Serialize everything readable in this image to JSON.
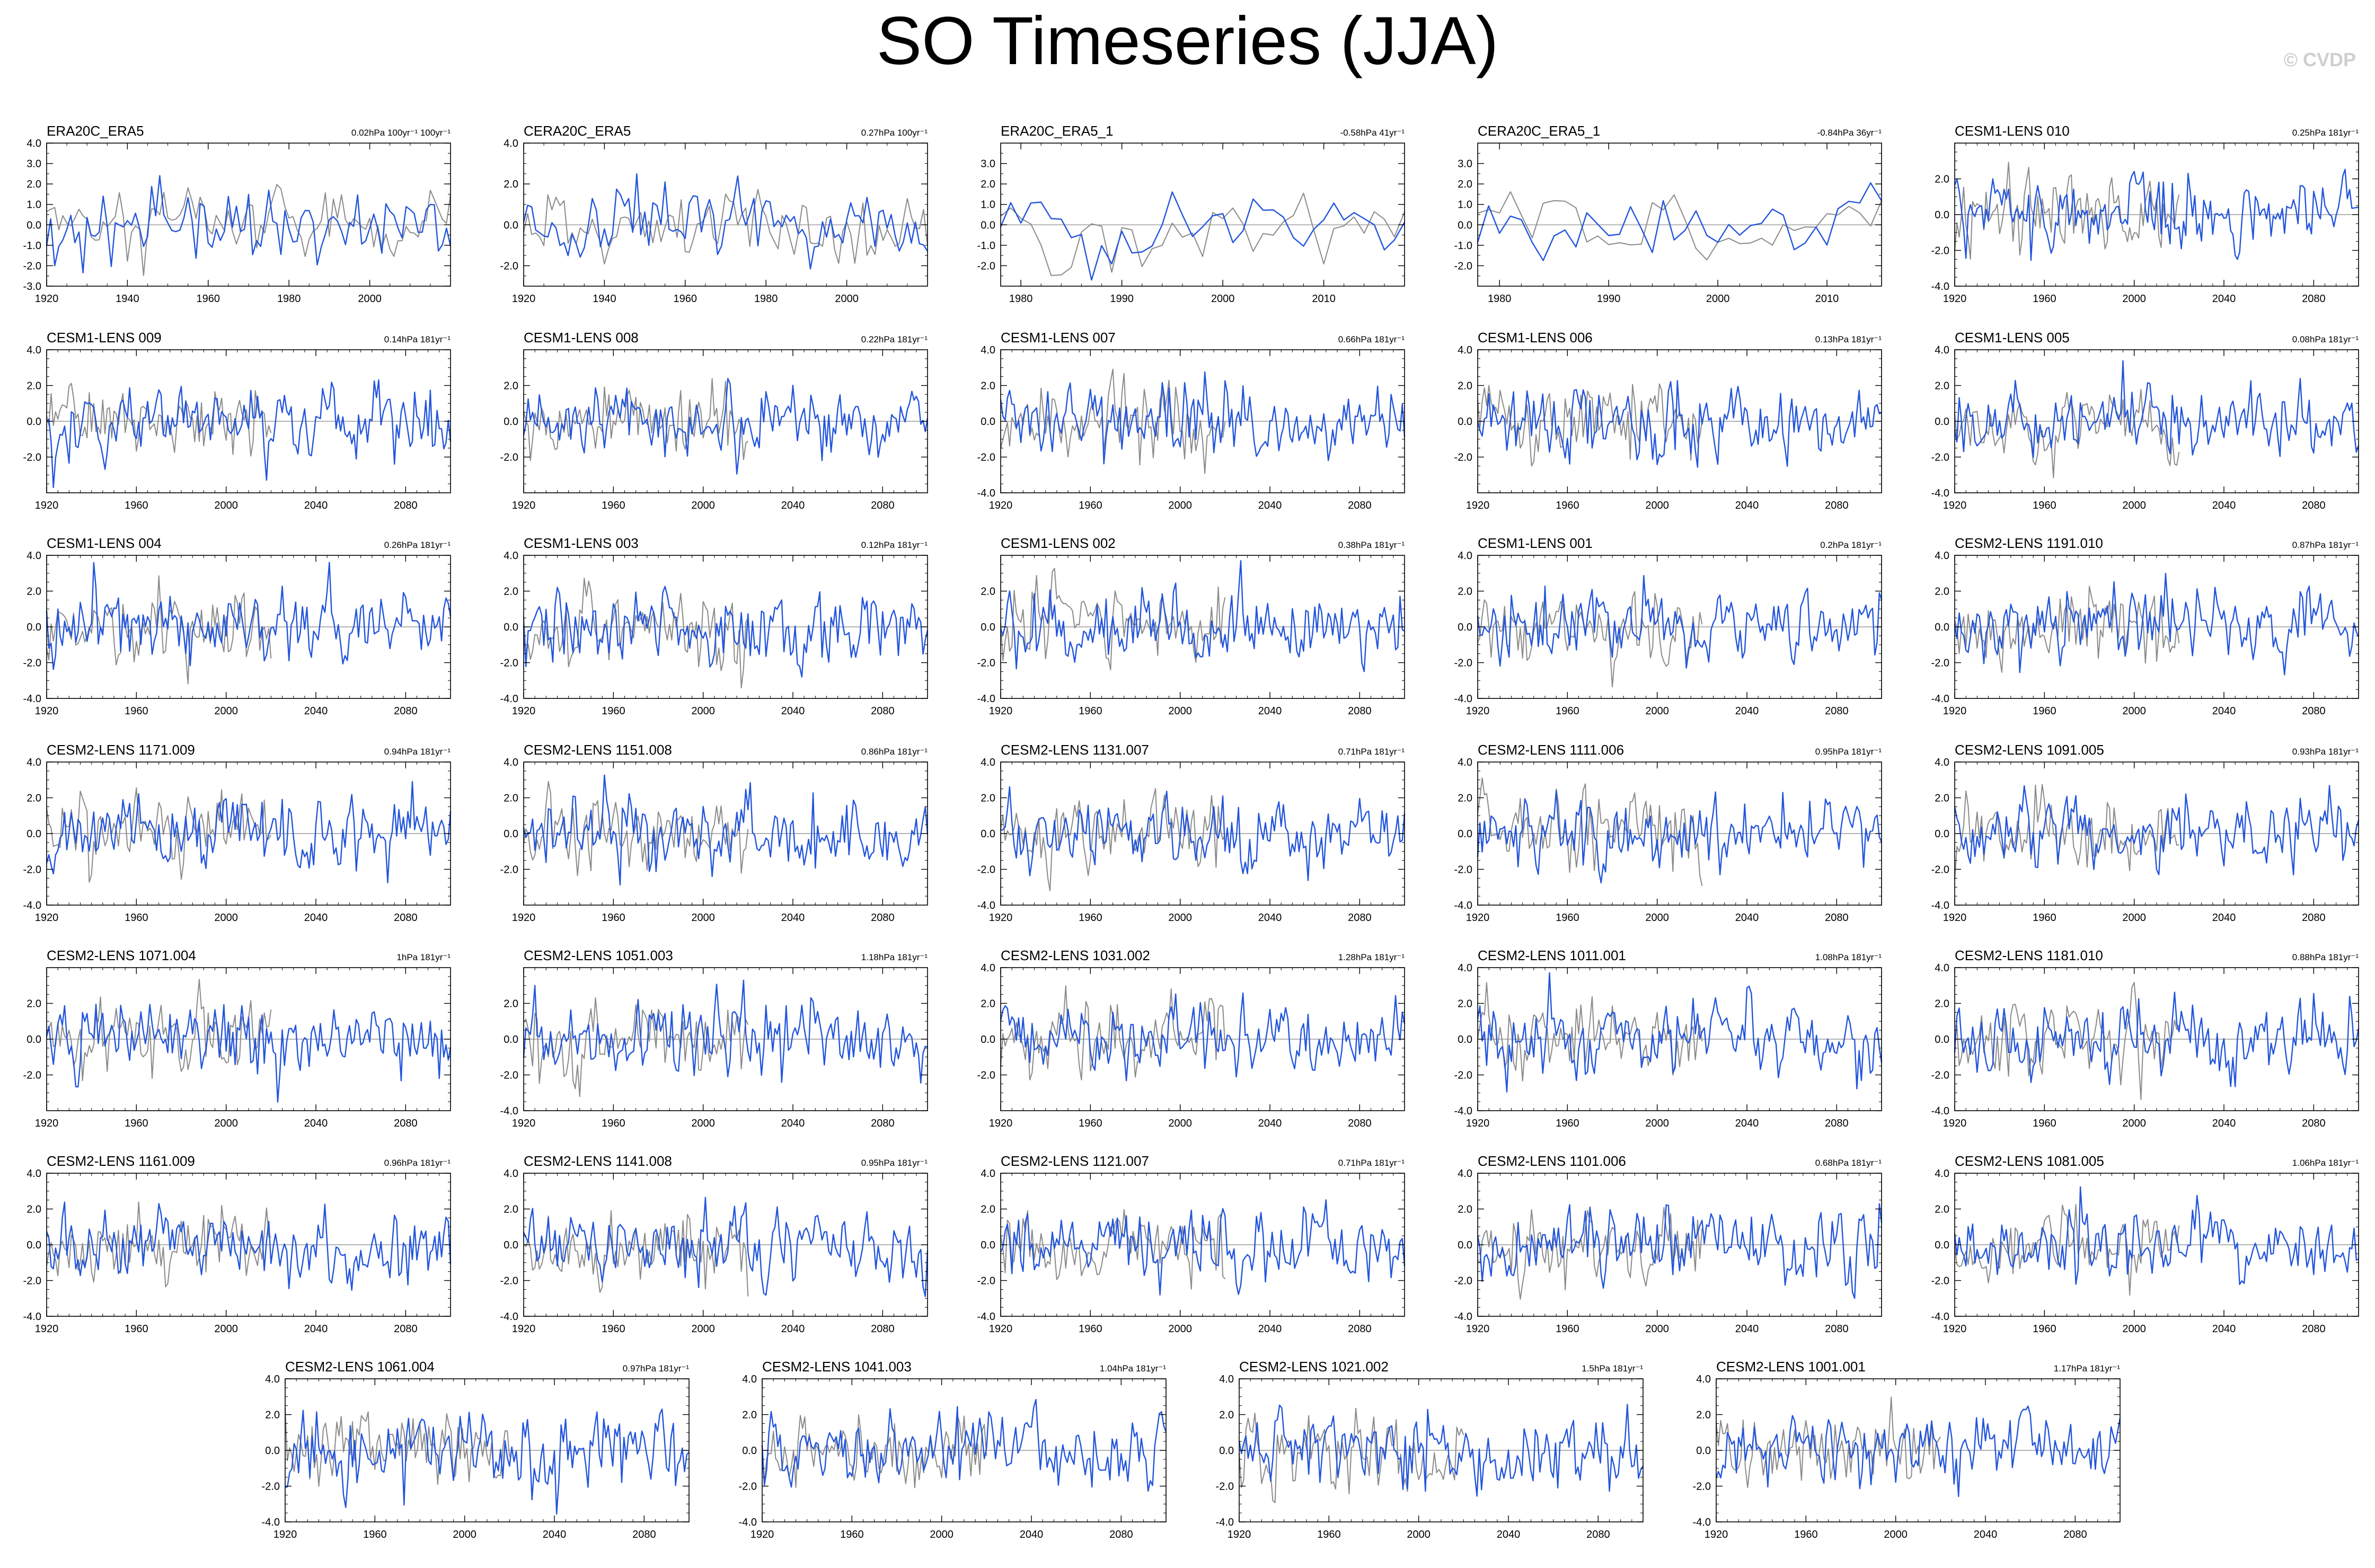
{
  "title": "SO Timeseries (JJA)",
  "watermark": "© CVDP",
  "colors": {
    "observed": "#8a8a8a",
    "model": "#2255dd",
    "zero_line": "#999999",
    "frame": "#000000"
  },
  "chart_data": [
    {
      "type": "line",
      "title": "ERA20C_ERA5",
      "stat": "0.02hPa 100yr⁻¹ 100yr⁻¹",
      "xlim": [
        1920,
        2020
      ],
      "ylim": [
        -3,
        4
      ],
      "xticks": [
        1920,
        1940,
        1960,
        1980,
        2000
      ],
      "yticks": [
        -3.0,
        -2.0,
        -1.0,
        0.0,
        1.0,
        2.0,
        3.0,
        4.0
      ],
      "series": [
        {
          "role": "observed",
          "seed": 11
        },
        {
          "role": "model",
          "seed": 12
        }
      ]
    },
    {
      "type": "line",
      "title": "CERA20C_ERA5",
      "stat": "0.27hPa 100yr⁻¹",
      "xlim": [
        1920,
        2020
      ],
      "ylim": [
        -3,
        4
      ],
      "xticks": [
        1920,
        1940,
        1960,
        1980,
        2000
      ],
      "yticks": [
        -2.0,
        0.0,
        2.0,
        4.0
      ],
      "series": [
        {
          "role": "observed",
          "seed": 21
        },
        {
          "role": "model",
          "seed": 22
        }
      ]
    },
    {
      "type": "line",
      "title": "ERA20C_ERA5_1",
      "stat": "-0.58hPa 41yr⁻¹",
      "xlim": [
        1978,
        2018
      ],
      "ylim": [
        -3,
        4
      ],
      "xticks": [
        1980,
        1990,
        2000,
        2010
      ],
      "yticks": [
        -2.0,
        -1.0,
        0.0,
        1.0,
        2.0,
        3.0
      ],
      "series": [
        {
          "role": "observed",
          "seed": 31
        },
        {
          "role": "model",
          "seed": 32
        }
      ]
    },
    {
      "type": "line",
      "title": "CERA20C_ERA5_1",
      "stat": "-0.84hPa 36yr⁻¹",
      "xlim": [
        1978,
        2015
      ],
      "ylim": [
        -3,
        4
      ],
      "xticks": [
        1980,
        1990,
        2000,
        2010
      ],
      "yticks": [
        -2.0,
        -1.0,
        0.0,
        1.0,
        2.0,
        3.0
      ],
      "series": [
        {
          "role": "observed",
          "seed": 41
        },
        {
          "role": "model",
          "seed": 42
        }
      ]
    },
    {
      "type": "line",
      "title": "CESM1-LENS 010",
      "stat": "0.25hPa 181yr⁻¹",
      "xlim": [
        1920,
        2100
      ],
      "ylim": [
        -4,
        4
      ],
      "xticks": [
        1920,
        1960,
        2000,
        2040,
        2080
      ],
      "yticks": [
        -4.0,
        -2.0,
        0.0,
        2.0
      ],
      "series": [
        {
          "role": "observed",
          "seed": 51
        },
        {
          "role": "model",
          "seed": 52
        }
      ]
    },
    {
      "type": "line",
      "title": "CESM1-LENS 009",
      "stat": "0.14hPa 181yr⁻¹",
      "xlim": [
        1920,
        2100
      ],
      "ylim": [
        -4,
        4
      ],
      "xticks": [
        1920,
        1960,
        2000,
        2040,
        2080
      ],
      "yticks": [
        -2.0,
        0.0,
        2.0,
        4.0
      ],
      "series": [
        {
          "role": "observed",
          "seed": 61
        },
        {
          "role": "model",
          "seed": 62
        }
      ]
    },
    {
      "type": "line",
      "title": "CESM1-LENS 008",
      "stat": "0.22hPa 181yr⁻¹",
      "xlim": [
        1920,
        2100
      ],
      "ylim": [
        -4,
        4
      ],
      "xticks": [
        1920,
        1960,
        2000,
        2040,
        2080
      ],
      "yticks": [
        -2.0,
        0.0,
        2.0
      ],
      "series": [
        {
          "role": "observed",
          "seed": 71
        },
        {
          "role": "model",
          "seed": 72
        }
      ]
    },
    {
      "type": "line",
      "title": "CESM1-LENS 007",
      "stat": "0.66hPa 181yr⁻¹",
      "xlim": [
        1920,
        2100
      ],
      "ylim": [
        -4,
        4
      ],
      "xticks": [
        1920,
        1960,
        2000,
        2040,
        2080
      ],
      "yticks": [
        -4.0,
        -2.0,
        0.0,
        2.0,
        4.0
      ],
      "series": [
        {
          "role": "observed",
          "seed": 81
        },
        {
          "role": "model",
          "seed": 82
        }
      ]
    },
    {
      "type": "line",
      "title": "CESM1-LENS 006",
      "stat": "0.13hPa 181yr⁻¹",
      "xlim": [
        1920,
        2100
      ],
      "ylim": [
        -4,
        4
      ],
      "xticks": [
        1920,
        1960,
        2000,
        2040,
        2080
      ],
      "yticks": [
        -2.0,
        0.0,
        2.0,
        4.0
      ],
      "series": [
        {
          "role": "observed",
          "seed": 91
        },
        {
          "role": "model",
          "seed": 92
        }
      ]
    },
    {
      "type": "line",
      "title": "CESM1-LENS 005",
      "stat": "0.08hPa 181yr⁻¹",
      "xlim": [
        1920,
        2100
      ],
      "ylim": [
        -4,
        4
      ],
      "xticks": [
        1920,
        1960,
        2000,
        2040,
        2080
      ],
      "yticks": [
        -4.0,
        -2.0,
        0.0,
        2.0,
        4.0
      ],
      "series": [
        {
          "role": "observed",
          "seed": 101
        },
        {
          "role": "model",
          "seed": 102
        }
      ]
    },
    {
      "type": "line",
      "title": "CESM1-LENS 004",
      "stat": "0.26hPa 181yr⁻¹",
      "xlim": [
        1920,
        2100
      ],
      "ylim": [
        -4,
        4
      ],
      "xticks": [
        1920,
        1960,
        2000,
        2040,
        2080
      ],
      "yticks": [
        -4.0,
        -2.0,
        0.0,
        2.0,
        4.0
      ],
      "series": [
        {
          "role": "observed",
          "seed": 111
        },
        {
          "role": "model",
          "seed": 112
        }
      ]
    },
    {
      "type": "line",
      "title": "CESM1-LENS 003",
      "stat": "0.12hPa 181yr⁻¹",
      "xlim": [
        1920,
        2100
      ],
      "ylim": [
        -4,
        4
      ],
      "xticks": [
        1920,
        1960,
        2000,
        2040,
        2080
      ],
      "yticks": [
        -4.0,
        -2.0,
        0.0,
        2.0,
        4.0
      ],
      "series": [
        {
          "role": "observed",
          "seed": 121
        },
        {
          "role": "model",
          "seed": 122
        }
      ]
    },
    {
      "type": "line",
      "title": "CESM1-LENS 002",
      "stat": "0.38hPa 181yr⁻¹",
      "xlim": [
        1920,
        2100
      ],
      "ylim": [
        -4,
        4
      ],
      "xticks": [
        1920,
        1960,
        2000,
        2040,
        2080
      ],
      "yticks": [
        -4.0,
        -2.0,
        0.0,
        2.0
      ],
      "series": [
        {
          "role": "observed",
          "seed": 131
        },
        {
          "role": "model",
          "seed": 132
        }
      ]
    },
    {
      "type": "line",
      "title": "CESM1-LENS 001",
      "stat": "0.2hPa 181yr⁻¹",
      "xlim": [
        1920,
        2100
      ],
      "ylim": [
        -4,
        4
      ],
      "xticks": [
        1920,
        1960,
        2000,
        2040,
        2080
      ],
      "yticks": [
        -4.0,
        -2.0,
        0.0,
        2.0,
        4.0
      ],
      "series": [
        {
          "role": "observed",
          "seed": 141
        },
        {
          "role": "model",
          "seed": 142
        }
      ]
    },
    {
      "type": "line",
      "title": "CESM2-LENS 1191.010",
      "stat": "0.87hPa 181yr⁻¹",
      "xlim": [
        1920,
        2100
      ],
      "ylim": [
        -4,
        4
      ],
      "xticks": [
        1920,
        1960,
        2000,
        2040,
        2080
      ],
      "yticks": [
        -4.0,
        -2.0,
        0.0,
        2.0,
        4.0
      ],
      "series": [
        {
          "role": "observed",
          "seed": 151
        },
        {
          "role": "model",
          "seed": 152
        }
      ]
    },
    {
      "type": "line",
      "title": "CESM2-LENS 1171.009",
      "stat": "0.94hPa 181yr⁻¹",
      "xlim": [
        1920,
        2100
      ],
      "ylim": [
        -4,
        4
      ],
      "xticks": [
        1920,
        1960,
        2000,
        2040,
        2080
      ],
      "yticks": [
        -4.0,
        -2.0,
        0.0,
        2.0,
        4.0
      ],
      "series": [
        {
          "role": "observed",
          "seed": 161
        },
        {
          "role": "model",
          "seed": 162
        }
      ]
    },
    {
      "type": "line",
      "title": "CESM2-LENS 1151.008",
      "stat": "0.86hPa 181yr⁻¹",
      "xlim": [
        1920,
        2100
      ],
      "ylim": [
        -4,
        4
      ],
      "xticks": [
        1920,
        1960,
        2000,
        2040,
        2080
      ],
      "yticks": [
        -2.0,
        0.0,
        2.0,
        4.0
      ],
      "series": [
        {
          "role": "observed",
          "seed": 171
        },
        {
          "role": "model",
          "seed": 172
        }
      ]
    },
    {
      "type": "line",
      "title": "CESM2-LENS 1131.007",
      "stat": "0.71hPa 181yr⁻¹",
      "xlim": [
        1920,
        2100
      ],
      "ylim": [
        -4,
        4
      ],
      "xticks": [
        1920,
        1960,
        2000,
        2040,
        2080
      ],
      "yticks": [
        -4.0,
        -2.0,
        0.0,
        2.0,
        4.0
      ],
      "series": [
        {
          "role": "observed",
          "seed": 181
        },
        {
          "role": "model",
          "seed": 182
        }
      ]
    },
    {
      "type": "line",
      "title": "CESM2-LENS 1111.006",
      "stat": "0.95hPa 181yr⁻¹",
      "xlim": [
        1920,
        2100
      ],
      "ylim": [
        -4,
        4
      ],
      "xticks": [
        1920,
        1960,
        2000,
        2040,
        2080
      ],
      "yticks": [
        -4.0,
        -2.0,
        0.0,
        2.0,
        4.0
      ],
      "series": [
        {
          "role": "observed",
          "seed": 191
        },
        {
          "role": "model",
          "seed": 192
        }
      ]
    },
    {
      "type": "line",
      "title": "CESM2-LENS 1091.005",
      "stat": "0.93hPa 181yr⁻¹",
      "xlim": [
        1920,
        2100
      ],
      "ylim": [
        -4,
        4
      ],
      "xticks": [
        1920,
        1960,
        2000,
        2040,
        2080
      ],
      "yticks": [
        -4.0,
        -2.0,
        0.0,
        2.0,
        4.0
      ],
      "series": [
        {
          "role": "observed",
          "seed": 201
        },
        {
          "role": "model",
          "seed": 202
        }
      ]
    },
    {
      "type": "line",
      "title": "CESM2-LENS 1071.004",
      "stat": "1hPa 181yr⁻¹",
      "xlim": [
        1920,
        2100
      ],
      "ylim": [
        -4,
        4
      ],
      "xticks": [
        1920,
        1960,
        2000,
        2040,
        2080
      ],
      "yticks": [
        -2.0,
        0.0,
        2.0
      ],
      "series": [
        {
          "role": "observed",
          "seed": 211
        },
        {
          "role": "model",
          "seed": 212
        }
      ]
    },
    {
      "type": "line",
      "title": "CESM2-LENS 1051.003",
      "stat": "1.18hPa 181yr⁻¹",
      "xlim": [
        1920,
        2100
      ],
      "ylim": [
        -4,
        4
      ],
      "xticks": [
        1920,
        1960,
        2000,
        2040,
        2080
      ],
      "yticks": [
        -4.0,
        -2.0,
        0.0,
        2.0
      ],
      "series": [
        {
          "role": "observed",
          "seed": 221
        },
        {
          "role": "model",
          "seed": 222
        }
      ]
    },
    {
      "type": "line",
      "title": "CESM2-LENS 1031.002",
      "stat": "1.28hPa 181yr⁻¹",
      "xlim": [
        1920,
        2100
      ],
      "ylim": [
        -4,
        4
      ],
      "xticks": [
        1920,
        1960,
        2000,
        2040,
        2080
      ],
      "yticks": [
        -2.0,
        0.0,
        2.0,
        4.0
      ],
      "series": [
        {
          "role": "observed",
          "seed": 231
        },
        {
          "role": "model",
          "seed": 232
        }
      ]
    },
    {
      "type": "line",
      "title": "CESM2-LENS 1011.001",
      "stat": "1.08hPa 181yr⁻¹",
      "xlim": [
        1920,
        2100
      ],
      "ylim": [
        -4,
        4
      ],
      "xticks": [
        1920,
        1960,
        2000,
        2040,
        2080
      ],
      "yticks": [
        -4.0,
        -2.0,
        0.0,
        2.0,
        4.0
      ],
      "series": [
        {
          "role": "observed",
          "seed": 241
        },
        {
          "role": "model",
          "seed": 242
        }
      ]
    },
    {
      "type": "line",
      "title": "CESM2-LENS 1181.010",
      "stat": "0.88hPa 181yr⁻¹",
      "xlim": [
        1920,
        2100
      ],
      "ylim": [
        -4,
        4
      ],
      "xticks": [
        1920,
        1960,
        2000,
        2040,
        2080
      ],
      "yticks": [
        -4.0,
        -2.0,
        0.0,
        2.0,
        4.0
      ],
      "series": [
        {
          "role": "observed",
          "seed": 251
        },
        {
          "role": "model",
          "seed": 252
        }
      ]
    },
    {
      "type": "line",
      "title": "CESM2-LENS 1161.009",
      "stat": "0.96hPa 181yr⁻¹",
      "xlim": [
        1920,
        2100
      ],
      "ylim": [
        -4,
        4
      ],
      "xticks": [
        1920,
        1960,
        2000,
        2040,
        2080
      ],
      "yticks": [
        -4.0,
        -2.0,
        0.0,
        2.0,
        4.0
      ],
      "series": [
        {
          "role": "observed",
          "seed": 261
        },
        {
          "role": "model",
          "seed": 262
        }
      ]
    },
    {
      "type": "line",
      "title": "CESM2-LENS 1141.008",
      "stat": "0.95hPa 181yr⁻¹",
      "xlim": [
        1920,
        2100
      ],
      "ylim": [
        -4,
        4
      ],
      "xticks": [
        1920,
        1960,
        2000,
        2040,
        2080
      ],
      "yticks": [
        -4.0,
        -2.0,
        0.0,
        2.0,
        4.0
      ],
      "series": [
        {
          "role": "observed",
          "seed": 271
        },
        {
          "role": "model",
          "seed": 272
        }
      ]
    },
    {
      "type": "line",
      "title": "CESM2-LENS 1121.007",
      "stat": "0.71hPa 181yr⁻¹",
      "xlim": [
        1920,
        2100
      ],
      "ylim": [
        -4,
        4
      ],
      "xticks": [
        1920,
        1960,
        2000,
        2040,
        2080
      ],
      "yticks": [
        -4.0,
        -2.0,
        0.0,
        2.0,
        4.0
      ],
      "series": [
        {
          "role": "observed",
          "seed": 281
        },
        {
          "role": "model",
          "seed": 282
        }
      ]
    },
    {
      "type": "line",
      "title": "CESM2-LENS 1101.006",
      "stat": "0.68hPa 181yr⁻¹",
      "xlim": [
        1920,
        2100
      ],
      "ylim": [
        -4,
        4
      ],
      "xticks": [
        1920,
        1960,
        2000,
        2040,
        2080
      ],
      "yticks": [
        -4.0,
        -2.0,
        0.0,
        2.0,
        4.0
      ],
      "series": [
        {
          "role": "observed",
          "seed": 291
        },
        {
          "role": "model",
          "seed": 292
        }
      ]
    },
    {
      "type": "line",
      "title": "CESM2-LENS 1081.005",
      "stat": "1.06hPa 181yr⁻¹",
      "xlim": [
        1920,
        2100
      ],
      "ylim": [
        -4,
        4
      ],
      "xticks": [
        1920,
        1960,
        2000,
        2040,
        2080
      ],
      "yticks": [
        -4.0,
        -2.0,
        0.0,
        2.0,
        4.0
      ],
      "series": [
        {
          "role": "observed",
          "seed": 301
        },
        {
          "role": "model",
          "seed": 302
        }
      ]
    },
    {
      "type": "line",
      "title": "CESM2-LENS 1061.004",
      "stat": "0.97hPa 181yr⁻¹",
      "xlim": [
        1920,
        2100
      ],
      "ylim": [
        -4,
        4
      ],
      "xticks": [
        1920,
        1960,
        2000,
        2040,
        2080
      ],
      "yticks": [
        -4.0,
        -2.0,
        0.0,
        2.0,
        4.0
      ],
      "series": [
        {
          "role": "observed",
          "seed": 311
        },
        {
          "role": "model",
          "seed": 312
        }
      ]
    },
    {
      "type": "line",
      "title": "CESM2-LENS 1041.003",
      "stat": "1.04hPa 181yr⁻¹",
      "xlim": [
        1920,
        2100
      ],
      "ylim": [
        -4,
        4
      ],
      "xticks": [
        1920,
        1960,
        2000,
        2040,
        2080
      ],
      "yticks": [
        -4.0,
        -2.0,
        0.0,
        2.0,
        4.0
      ],
      "series": [
        {
          "role": "observed",
          "seed": 321
        },
        {
          "role": "model",
          "seed": 322
        }
      ]
    },
    {
      "type": "line",
      "title": "CESM2-LENS 1021.002",
      "stat": "1.5hPa 181yr⁻¹",
      "xlim": [
        1920,
        2100
      ],
      "ylim": [
        -4,
        4
      ],
      "xticks": [
        1920,
        1960,
        2000,
        2040,
        2080
      ],
      "yticks": [
        -4.0,
        -2.0,
        0.0,
        2.0,
        4.0
      ],
      "series": [
        {
          "role": "observed",
          "seed": 331
        },
        {
          "role": "model",
          "seed": 332
        }
      ]
    },
    {
      "type": "line",
      "title": "CESM2-LENS 1001.001",
      "stat": "1.17hPa 181yr⁻¹",
      "xlim": [
        1920,
        2100
      ],
      "ylim": [
        -4,
        4
      ],
      "xticks": [
        1920,
        1960,
        2000,
        2040,
        2080
      ],
      "yticks": [
        -4.0,
        -2.0,
        0.0,
        2.0,
        4.0
      ],
      "series": [
        {
          "role": "observed",
          "seed": 341
        },
        {
          "role": "model",
          "seed": 342
        }
      ]
    }
  ]
}
